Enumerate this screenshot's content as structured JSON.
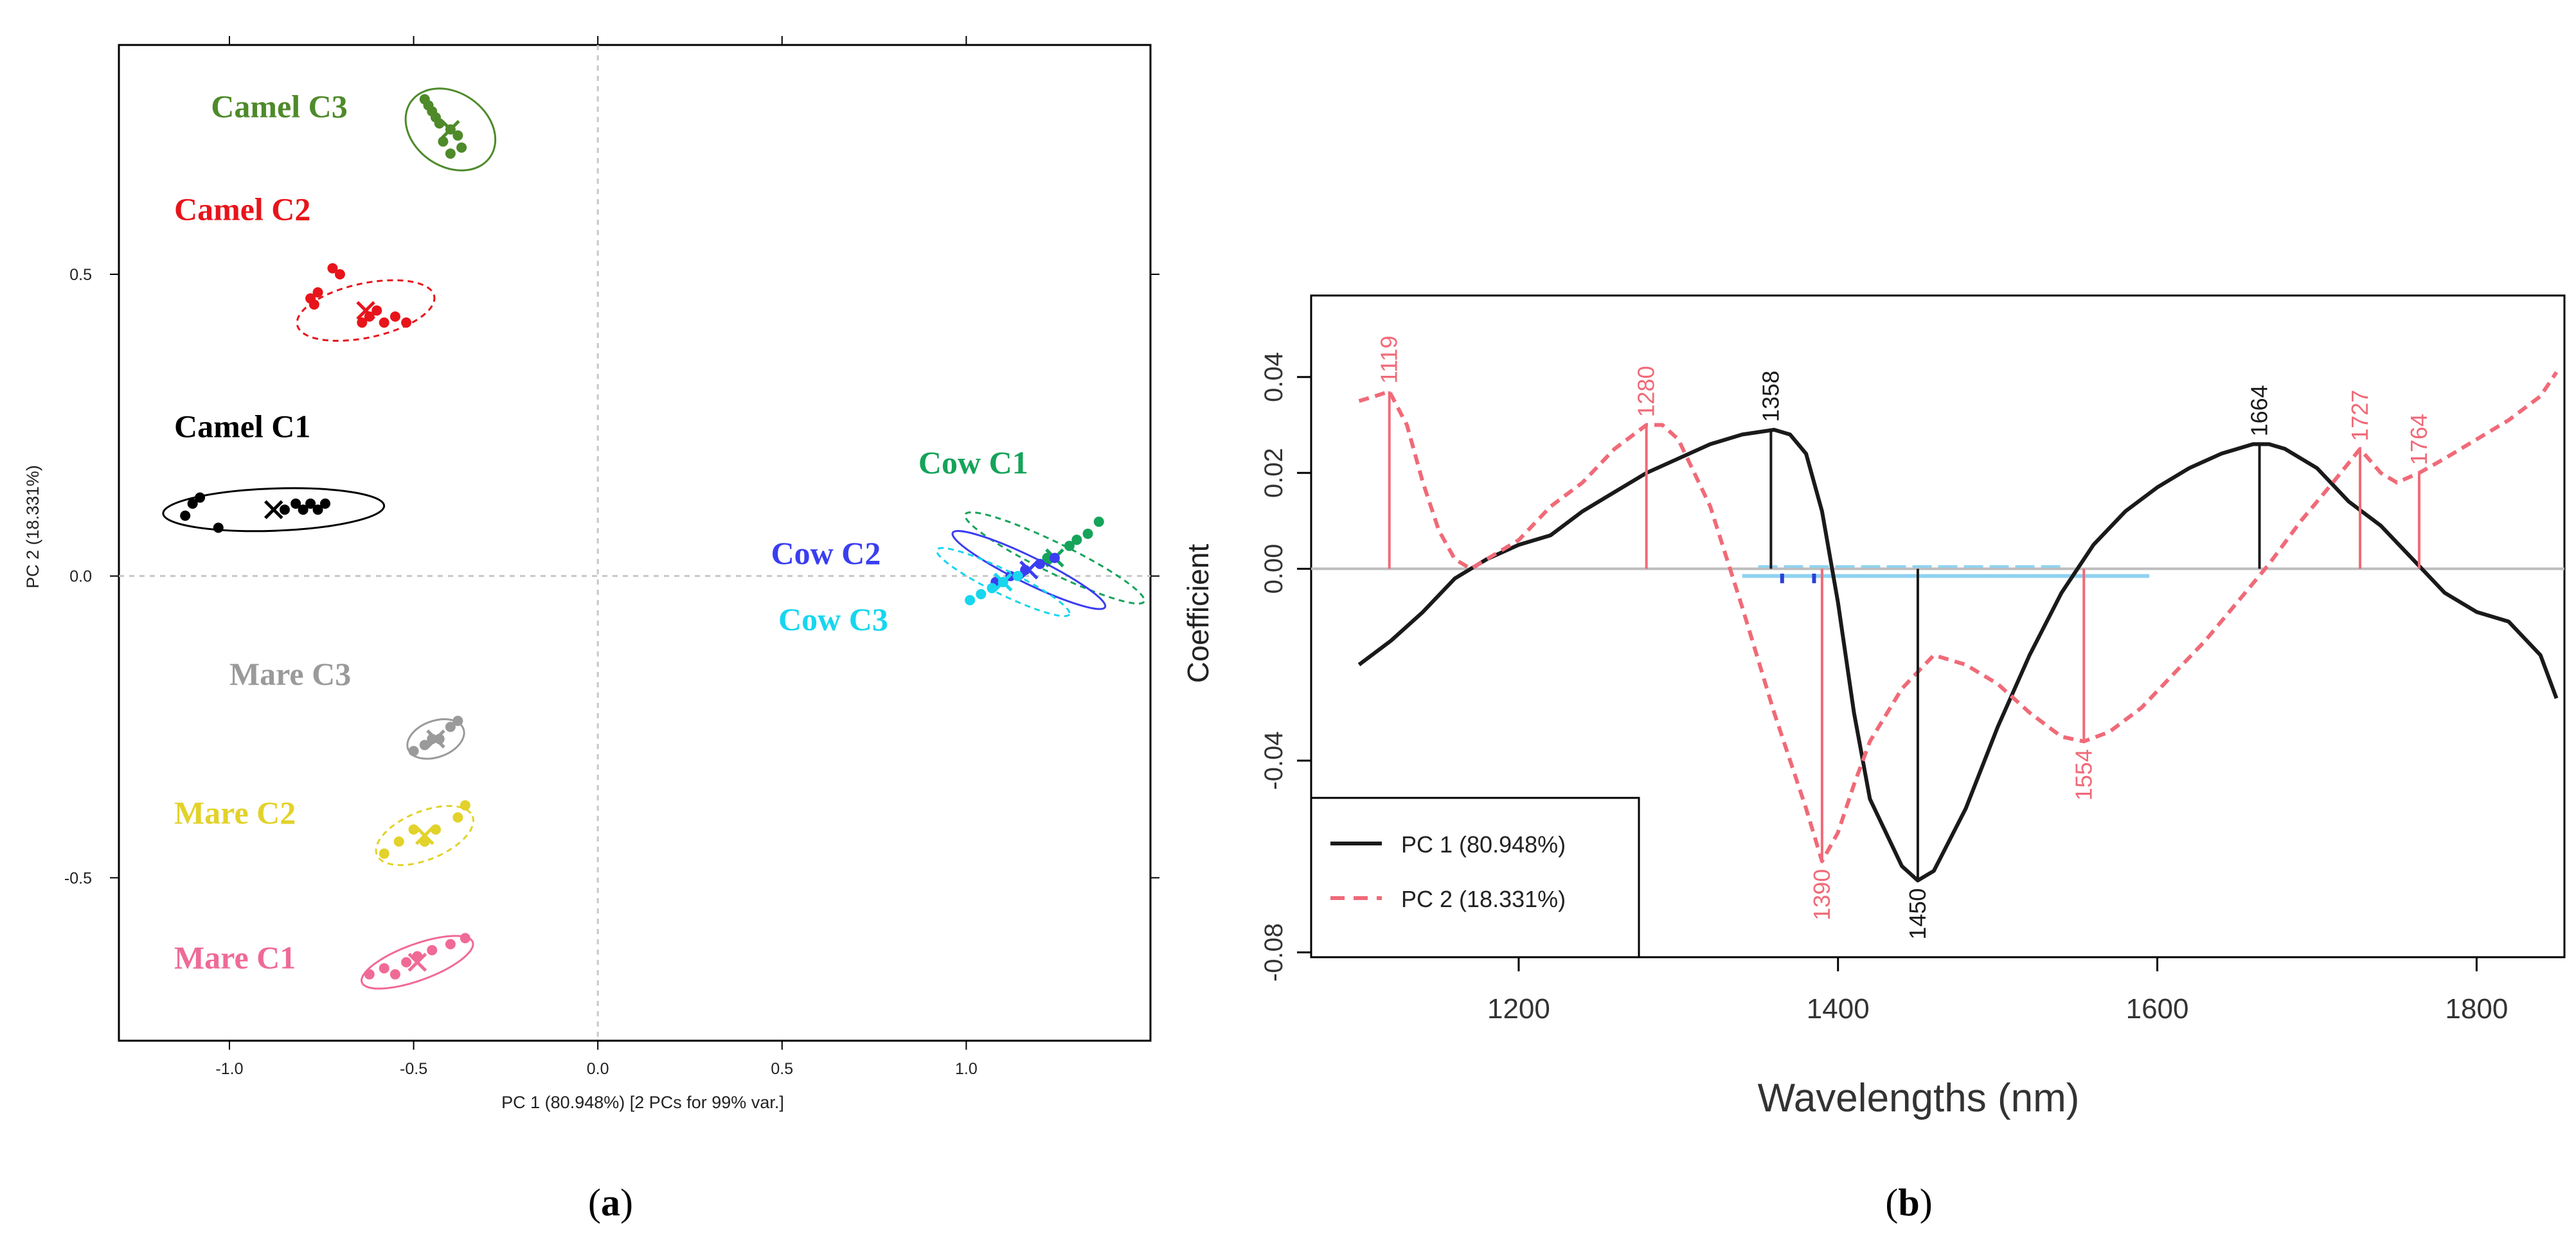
{
  "panel_labels": {
    "a": "a",
    "b": "b"
  },
  "colors": {
    "camel_c3": "#4e8a2a",
    "camel_c2": "#e8141b",
    "camel_c1": "#000000",
    "cow_c1": "#16a35a",
    "cow_c2": "#3a3ef0",
    "cow_c3": "#17d6ee",
    "mare_c3": "#9a9a9a",
    "mare_c2": "#e2d22a",
    "mare_c1": "#f06a96",
    "pc1": "#1a1a1a",
    "pc2": "#f06a78",
    "zero": "#bdbdbd",
    "band": "#8fd3f0"
  },
  "chart_data": [
    {
      "type": "scatter",
      "title": "",
      "xlabel": "PC 1 (80.948%)   [2 PCs for 99% var.]",
      "ylabel": "PC 2 (18.331%)",
      "xlim": [
        -1.3,
        1.5
      ],
      "ylim": [
        -0.77,
        0.88
      ],
      "xticks": [
        -1.0,
        -0.5,
        0.0,
        0.5,
        1.0
      ],
      "xtick_labels": [
        "-1.0",
        "-0.5",
        "0.0",
        "0.5",
        "1.0"
      ],
      "yticks": [
        -0.5,
        0.0,
        0.5
      ],
      "ytick_labels": [
        "-0.5",
        "0.0",
        "0.5"
      ],
      "groups": [
        {
          "name": "Camel C3",
          "color_key": "camel_c3",
          "label_pos": [
            -1.05,
            0.76
          ],
          "ellipse": {
            "cx": -0.4,
            "cy": 0.74,
            "rx": 0.1,
            "ry": 0.08,
            "angle": -55
          },
          "dashed": false,
          "points": [
            [
              -0.47,
              0.79
            ],
            [
              -0.46,
              0.78
            ],
            [
              -0.45,
              0.77
            ],
            [
              -0.44,
              0.76
            ],
            [
              -0.42,
              0.72
            ],
            [
              -0.4,
              0.74
            ],
            [
              -0.38,
              0.73
            ],
            [
              -0.4,
              0.7
            ],
            [
              -0.37,
              0.71
            ],
            [
              -0.43,
              0.75
            ]
          ]
        },
        {
          "name": "Camel C2",
          "color_key": "camel_c2",
          "label_pos": [
            -1.15,
            0.59
          ],
          "ellipse": {
            "cx": -0.63,
            "cy": 0.44,
            "rx": 0.19,
            "ry": 0.045,
            "angle": -12
          },
          "dashed": true,
          "points": [
            [
              -0.78,
              0.46
            ],
            [
              -0.77,
              0.45
            ],
            [
              -0.76,
              0.47
            ],
            [
              -0.72,
              0.51
            ],
            [
              -0.7,
              0.5
            ],
            [
              -0.64,
              0.42
            ],
            [
              -0.62,
              0.43
            ],
            [
              -0.6,
              0.44
            ],
            [
              -0.58,
              0.42
            ],
            [
              -0.55,
              0.43
            ],
            [
              -0.52,
              0.42
            ]
          ]
        },
        {
          "name": "Camel C1",
          "color_key": "camel_c1",
          "label_pos": [
            -1.15,
            0.23
          ],
          "ellipse": {
            "cx": -0.88,
            "cy": 0.11,
            "rx": 0.3,
            "ry": 0.035,
            "angle": -2
          },
          "dashed": false,
          "points": [
            [
              -1.12,
              0.1
            ],
            [
              -1.1,
              0.12
            ],
            [
              -1.08,
              0.13
            ],
            [
              -1.03,
              0.08
            ],
            [
              -0.85,
              0.11
            ],
            [
              -0.82,
              0.12
            ],
            [
              -0.8,
              0.11
            ],
            [
              -0.78,
              0.12
            ],
            [
              -0.76,
              0.11
            ],
            [
              -0.74,
              0.12
            ]
          ]
        },
        {
          "name": "Cow C1",
          "color_key": "cow_c1",
          "label_pos": [
            0.87,
            0.17
          ],
          "ellipse": {
            "cx": 1.24,
            "cy": 0.03,
            "rx": 0.27,
            "ry": 0.025,
            "angle": 26
          },
          "dashed": true,
          "points": [
            [
              1.22,
              0.03
            ],
            [
              1.28,
              0.05
            ],
            [
              1.33,
              0.07
            ],
            [
              1.36,
              0.09
            ],
            [
              1.3,
              0.06
            ]
          ]
        },
        {
          "name": "Cow C2",
          "color_key": "cow_c2",
          "label_pos": [
            0.47,
            0.02
          ],
          "ellipse": {
            "cx": 1.17,
            "cy": 0.01,
            "rx": 0.23,
            "ry": 0.022,
            "angle": 26
          },
          "dashed": false,
          "points": [
            [
              1.08,
              -0.01
            ],
            [
              1.12,
              0.0
            ],
            [
              1.16,
              0.01
            ],
            [
              1.2,
              0.02
            ],
            [
              1.24,
              0.03
            ]
          ]
        },
        {
          "name": "Cow C3",
          "color_key": "cow_c3",
          "label_pos": [
            0.49,
            -0.09
          ],
          "ellipse": {
            "cx": 1.1,
            "cy": -0.01,
            "rx": 0.2,
            "ry": 0.02,
            "angle": 26
          },
          "dashed": true,
          "points": [
            [
              1.01,
              -0.04
            ],
            [
              1.04,
              -0.03
            ],
            [
              1.07,
              -0.02
            ],
            [
              1.1,
              -0.01
            ],
            [
              1.14,
              0.0
            ]
          ]
        },
        {
          "name": "Mare C3",
          "color_key": "mare_c3",
          "label_pos": [
            -1.0,
            -0.18
          ],
          "ellipse": {
            "cx": -0.44,
            "cy": -0.27,
            "rx": 0.08,
            "ry": 0.03,
            "angle": -20
          },
          "dashed": false,
          "points": [
            [
              -0.5,
              -0.29
            ],
            [
              -0.47,
              -0.28
            ],
            [
              -0.45,
              -0.27
            ],
            [
              -0.43,
              -0.27
            ],
            [
              -0.4,
              -0.25
            ],
            [
              -0.38,
              -0.24
            ]
          ]
        },
        {
          "name": "Mare C2",
          "color_key": "mare_c2",
          "label_pos": [
            -1.15,
            -0.41
          ],
          "ellipse": {
            "cx": -0.47,
            "cy": -0.43,
            "rx": 0.14,
            "ry": 0.04,
            "angle": -22
          },
          "dashed": true,
          "points": [
            [
              -0.58,
              -0.46
            ],
            [
              -0.54,
              -0.44
            ],
            [
              -0.5,
              -0.42
            ],
            [
              -0.47,
              -0.44
            ],
            [
              -0.44,
              -0.42
            ],
            [
              -0.38,
              -0.4
            ],
            [
              -0.36,
              -0.38
            ]
          ]
        },
        {
          "name": "Mare C1",
          "color_key": "mare_c1",
          "label_pos": [
            -1.15,
            -0.65
          ],
          "ellipse": {
            "cx": -0.49,
            "cy": -0.64,
            "rx": 0.16,
            "ry": 0.03,
            "angle": -20
          },
          "dashed": false,
          "points": [
            [
              -0.62,
              -0.66
            ],
            [
              -0.58,
              -0.65
            ],
            [
              -0.55,
              -0.66
            ],
            [
              -0.52,
              -0.64
            ],
            [
              -0.49,
              -0.63
            ],
            [
              -0.45,
              -0.62
            ],
            [
              -0.4,
              -0.61
            ],
            [
              -0.36,
              -0.6
            ]
          ]
        }
      ]
    },
    {
      "type": "line",
      "title": "",
      "xlabel": "Wavelengths (nm)",
      "ylabel": "Coefficient",
      "xlim": [
        1070,
        1855
      ],
      "ylim": [
        -0.081,
        0.057
      ],
      "xticks": [
        1200,
        1400,
        1600,
        1800
      ],
      "xtick_labels": [
        "1200",
        "1400",
        "1600",
        "1800"
      ],
      "yticks": [
        -0.08,
        -0.04,
        0.0,
        0.02,
        0.04
      ],
      "ytick_labels": [
        "-0.08",
        "-0.04",
        "0.00",
        "0.02",
        "0.04"
      ],
      "legend": {
        "position": "bottom-left",
        "entries": [
          "PC 1 (80.948%)",
          "PC 2 (18.331%)"
        ]
      },
      "series": [
        {
          "name": "PC 1 (80.948%)",
          "style": "solid",
          "color_key": "pc1",
          "x": [
            1100,
            1120,
            1140,
            1160,
            1180,
            1200,
            1220,
            1240,
            1260,
            1280,
            1300,
            1320,
            1340,
            1360,
            1370,
            1380,
            1390,
            1400,
            1410,
            1420,
            1440,
            1450,
            1460,
            1480,
            1500,
            1520,
            1540,
            1560,
            1580,
            1600,
            1620,
            1640,
            1660,
            1670,
            1680,
            1700,
            1720,
            1740,
            1760,
            1780,
            1800,
            1820,
            1840,
            1850
          ],
          "y": [
            -0.02,
            -0.015,
            -0.009,
            -0.002,
            0.002,
            0.005,
            0.007,
            0.012,
            0.016,
            0.02,
            0.023,
            0.026,
            0.028,
            0.029,
            0.028,
            0.024,
            0.012,
            -0.007,
            -0.03,
            -0.048,
            -0.062,
            -0.065,
            -0.063,
            -0.05,
            -0.033,
            -0.018,
            -0.005,
            0.005,
            0.012,
            0.017,
            0.021,
            0.024,
            0.026,
            0.026,
            0.025,
            0.021,
            0.014,
            0.009,
            0.002,
            -0.005,
            -0.009,
            -0.011,
            -0.018,
            -0.027
          ]
        },
        {
          "name": "PC 2 (18.331%)",
          "style": "dashed",
          "color_key": "pc2",
          "x": [
            1100,
            1110,
            1119,
            1130,
            1140,
            1150,
            1160,
            1170,
            1180,
            1200,
            1220,
            1240,
            1260,
            1280,
            1290,
            1300,
            1320,
            1340,
            1360,
            1380,
            1390,
            1400,
            1410,
            1420,
            1440,
            1460,
            1480,
            1500,
            1520,
            1540,
            1554,
            1570,
            1590,
            1610,
            1630,
            1650,
            1670,
            1690,
            1710,
            1727,
            1740,
            1750,
            1764,
            1780,
            1800,
            1820,
            1840,
            1850
          ],
          "y": [
            0.035,
            0.036,
            0.037,
            0.03,
            0.018,
            0.008,
            0.002,
            0.0,
            0.002,
            0.006,
            0.013,
            0.018,
            0.025,
            0.03,
            0.03,
            0.027,
            0.013,
            -0.008,
            -0.03,
            -0.05,
            -0.061,
            -0.055,
            -0.045,
            -0.036,
            -0.025,
            -0.018,
            -0.02,
            -0.024,
            -0.03,
            -0.035,
            -0.036,
            -0.034,
            -0.029,
            -0.022,
            -0.015,
            -0.007,
            0.001,
            0.01,
            0.018,
            0.025,
            0.02,
            0.018,
            0.02,
            0.023,
            0.027,
            0.031,
            0.036,
            0.041
          ]
        }
      ],
      "zero_band": {
        "x_start": 1340,
        "x_end": 1595,
        "value": -0.0015
      },
      "band_marks": [
        1365,
        1385
      ],
      "peaks": [
        {
          "label": "1119",
          "x": 1119,
          "value": 0.037,
          "series": "pc2",
          "side": "above"
        },
        {
          "label": "1280",
          "x": 1280,
          "value": 0.03,
          "series": "pc2",
          "side": "above"
        },
        {
          "label": "1358",
          "x": 1358,
          "value": 0.029,
          "series": "pc1",
          "side": "above"
        },
        {
          "label": "1390",
          "x": 1390,
          "value": -0.061,
          "series": "pc2",
          "side": "below"
        },
        {
          "label": "1450",
          "x": 1450,
          "value": -0.065,
          "series": "pc1",
          "side": "below"
        },
        {
          "label": "1554",
          "x": 1554,
          "value": -0.036,
          "series": "pc2",
          "side": "below"
        },
        {
          "label": "1664",
          "x": 1664,
          "value": 0.026,
          "series": "pc1",
          "side": "above"
        },
        {
          "label": "1727",
          "x": 1727,
          "value": 0.025,
          "series": "pc2",
          "side": "above"
        },
        {
          "label": "1764",
          "x": 1764,
          "value": 0.02,
          "series": "pc2",
          "side": "above"
        }
      ]
    }
  ]
}
